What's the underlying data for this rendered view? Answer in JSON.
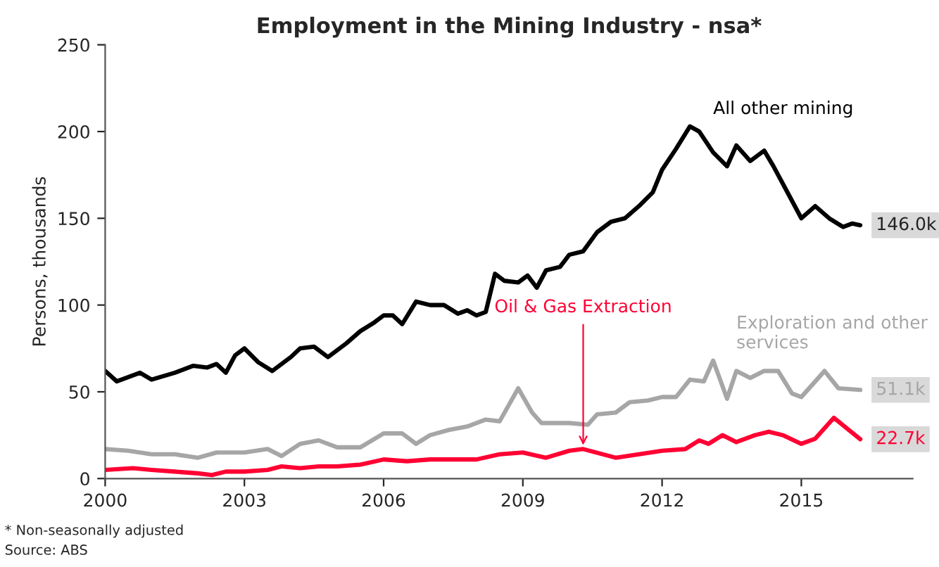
{
  "chart_data": {
    "type": "line",
    "title": "Employment in the Mining Industry - nsa*",
    "ylabel": "Persons, thousands",
    "xlim": [
      2000,
      2017.4
    ],
    "xticks": [
      2000,
      2003,
      2006,
      2009,
      2012,
      2015
    ],
    "ylim": [
      0,
      250
    ],
    "yticks": [
      0,
      50,
      100,
      150,
      200,
      250
    ],
    "grid": false,
    "legend": false,
    "marker": "none",
    "line_style": "solid",
    "series": [
      {
        "name": "All other mining",
        "color": "#000000",
        "x": [
          2000.0,
          2000.25,
          2000.75,
          2001.0,
          2001.5,
          2001.9,
          2002.2,
          2002.4,
          2002.6,
          2002.8,
          2003.0,
          2003.3,
          2003.6,
          2004.0,
          2004.2,
          2004.5,
          2004.8,
          2005.2,
          2005.5,
          2005.8,
          2006.0,
          2006.2,
          2006.4,
          2006.7,
          2007.0,
          2007.3,
          2007.6,
          2007.8,
          2008.0,
          2008.2,
          2008.4,
          2008.6,
          2008.9,
          2009.1,
          2009.3,
          2009.5,
          2009.8,
          2010.0,
          2010.3,
          2010.6,
          2010.9,
          2011.2,
          2011.5,
          2011.8,
          2012.0,
          2012.3,
          2012.6,
          2012.8,
          2013.1,
          2013.4,
          2013.6,
          2013.9,
          2014.2,
          2014.4,
          2014.7,
          2015.0,
          2015.3,
          2015.6,
          2015.9,
          2016.1,
          2016.27
        ],
        "values": [
          62,
          56,
          61,
          57,
          61,
          65,
          64,
          66,
          61,
          71,
          75,
          67,
          62,
          70,
          75,
          76,
          70,
          78,
          85,
          90,
          94,
          94,
          89,
          102,
          100,
          100,
          95,
          97,
          94,
          96,
          118,
          114,
          113,
          117,
          110,
          120,
          122,
          129,
          131,
          142,
          148,
          150,
          157,
          165,
          178,
          190,
          203,
          200,
          188,
          180,
          192,
          183,
          189,
          180,
          165,
          150,
          157,
          150,
          145,
          147,
          146
        ],
        "value_labels": [
          null,
          null,
          null,
          null,
          null,
          null,
          null,
          null,
          null,
          null,
          null,
          null,
          null,
          null,
          null,
          null,
          null,
          null,
          null,
          null,
          null,
          null,
          null,
          null,
          null,
          null,
          null,
          null,
          null,
          null,
          null,
          null,
          null,
          null,
          null,
          null,
          null,
          null,
          null,
          null,
          null,
          null,
          null,
          null,
          null,
          null,
          null,
          null,
          null,
          null,
          null,
          null,
          null,
          null,
          null,
          null,
          null,
          null,
          null,
          null,
          "146.0k"
        ]
      },
      {
        "name": "Exploration and other services",
        "color": "#a6a6a6",
        "x": [
          2000.0,
          2000.5,
          2001.0,
          2001.5,
          2002.0,
          2002.4,
          2003.0,
          2003.5,
          2003.8,
          2004.2,
          2004.6,
          2005.0,
          2005.5,
          2006.0,
          2006.4,
          2006.7,
          2007.0,
          2007.4,
          2007.8,
          2008.2,
          2008.5,
          2008.9,
          2009.2,
          2009.4,
          2009.7,
          2010.0,
          2010.4,
          2010.6,
          2011.0,
          2011.3,
          2011.7,
          2012.0,
          2012.3,
          2012.6,
          2012.9,
          2013.1,
          2013.4,
          2013.6,
          2013.9,
          2014.2,
          2014.5,
          2014.8,
          2015.0,
          2015.5,
          2015.8,
          2016.27
        ],
        "values": [
          17,
          16,
          14,
          14,
          12,
          15,
          15,
          17,
          13,
          20,
          22,
          18,
          18,
          26,
          26,
          20,
          25,
          28,
          30,
          34,
          33,
          52,
          38,
          32,
          32,
          32,
          31,
          37,
          38,
          44,
          45,
          47,
          47,
          57,
          56,
          68,
          46,
          62,
          58,
          62,
          62,
          49,
          47,
          62,
          52,
          51.1
        ],
        "value_labels": [
          null,
          null,
          null,
          null,
          null,
          null,
          null,
          null,
          null,
          null,
          null,
          null,
          null,
          null,
          null,
          null,
          null,
          null,
          null,
          null,
          null,
          null,
          null,
          null,
          null,
          null,
          null,
          null,
          null,
          null,
          null,
          null,
          null,
          null,
          null,
          null,
          null,
          null,
          null,
          null,
          null,
          null,
          null,
          null,
          null,
          "51.1k"
        ]
      },
      {
        "color": "#ff0033",
        "x": [
          2000.0,
          2000.6,
          2001.0,
          2001.5,
          2002.0,
          2002.3,
          2002.6,
          2003.0,
          2003.5,
          2003.8,
          2004.2,
          2004.6,
          2005.0,
          2005.5,
          2006.0,
          2006.5,
          2007.0,
          2007.5,
          2008.0,
          2008.5,
          2009.0,
          2009.5,
          2010.0,
          2010.3,
          2011.0,
          2011.5,
          2012.0,
          2012.5,
          2012.8,
          2013.0,
          2013.3,
          2013.6,
          2014.0,
          2014.3,
          2014.6,
          2015.0,
          2015.3,
          2015.7,
          2016.27
        ],
        "values": [
          5,
          6,
          5,
          4,
          3,
          2,
          4,
          4,
          5,
          7,
          6,
          7,
          7,
          8,
          11,
          10,
          11,
          11,
          11,
          14,
          15,
          12,
          16,
          17,
          12,
          14,
          16,
          17,
          22,
          20,
          25,
          21,
          25,
          27,
          25,
          20,
          23,
          35,
          22.7
        ],
        "value_labels": [
          null,
          null,
          null,
          null,
          null,
          null,
          null,
          null,
          null,
          null,
          null,
          null,
          null,
          null,
          null,
          null,
          null,
          null,
          null,
          null,
          null,
          null,
          null,
          null,
          null,
          null,
          null,
          null,
          null,
          null,
          null,
          null,
          null,
          null,
          null,
          null,
          null,
          null,
          "22.7k"
        ]
      }
    ],
    "annotations": [
      {
        "text": "Oil & Gas Extraction",
        "x": 2010.3,
        "y": 17
      },
      "* Non-seasonally adjusted",
      "Source: ABS"
    ]
  }
}
